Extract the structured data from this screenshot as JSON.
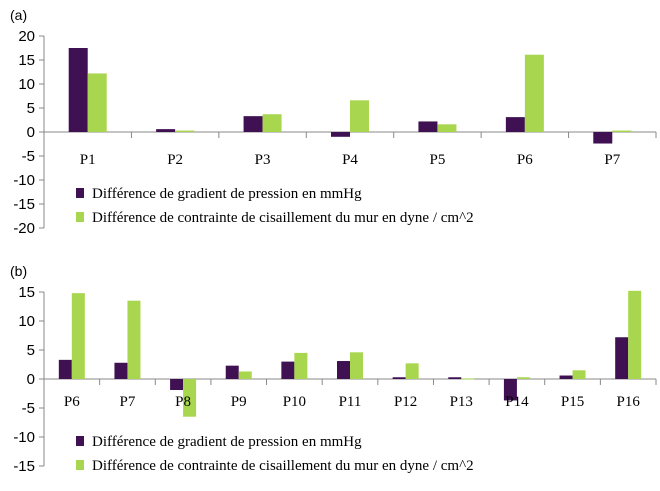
{
  "colors": {
    "series1": "#3f1153",
    "series2": "#a8d64e",
    "axis": "#888888"
  },
  "chart_data": [
    {
      "type": "bar",
      "panel_label": "(a)",
      "categories": [
        "P1",
        "P2",
        "P3",
        "P4",
        "P5",
        "P6",
        "P7"
      ],
      "ylim": [
        -20,
        20
      ],
      "yticks": [
        "20",
        "15",
        "10",
        "5",
        "0",
        "-5",
        "-10",
        "-15",
        "-20"
      ],
      "ytick_values": [
        20,
        15,
        10,
        5,
        0,
        -5,
        -10,
        -15,
        -20
      ],
      "legend_position": "bottom-left",
      "series": [
        {
          "name": "Différence de gradient de pression en mmHg",
          "values": [
            17.5,
            0.6,
            3.3,
            -1.0,
            2.2,
            3.1,
            -2.4
          ]
        },
        {
          "name": "Différence de contrainte de cisaillement du mur en dyne / cm^2",
          "values": [
            12.2,
            0.3,
            3.7,
            6.6,
            1.6,
            16.1,
            0.3
          ]
        }
      ]
    },
    {
      "type": "bar",
      "panel_label": "(b)",
      "categories": [
        "P6",
        "P7",
        "P8",
        "P9",
        "P10",
        "P11",
        "P12",
        "P13",
        "P14",
        "P15",
        "P16"
      ],
      "ylim": [
        -15,
        15
      ],
      "yticks": [
        "15",
        "10",
        "5",
        "0",
        "-5",
        "-10",
        "-15"
      ],
      "ytick_values": [
        15,
        10,
        5,
        0,
        -5,
        -10,
        -15
      ],
      "legend_position": "bottom-left",
      "series": [
        {
          "name": "Différence de gradient de pression en mmHg",
          "values": [
            3.3,
            2.8,
            -1.9,
            2.3,
            3.0,
            3.1,
            0.3,
            0.3,
            -3.7,
            0.6,
            7.2
          ]
        },
        {
          "name": "Différence de contrainte de cisaillement du mur en dyne / cm^2",
          "values": [
            14.8,
            13.5,
            -6.5,
            1.3,
            4.5,
            4.6,
            2.7,
            0.1,
            0.3,
            1.5,
            15.2
          ]
        }
      ]
    }
  ]
}
